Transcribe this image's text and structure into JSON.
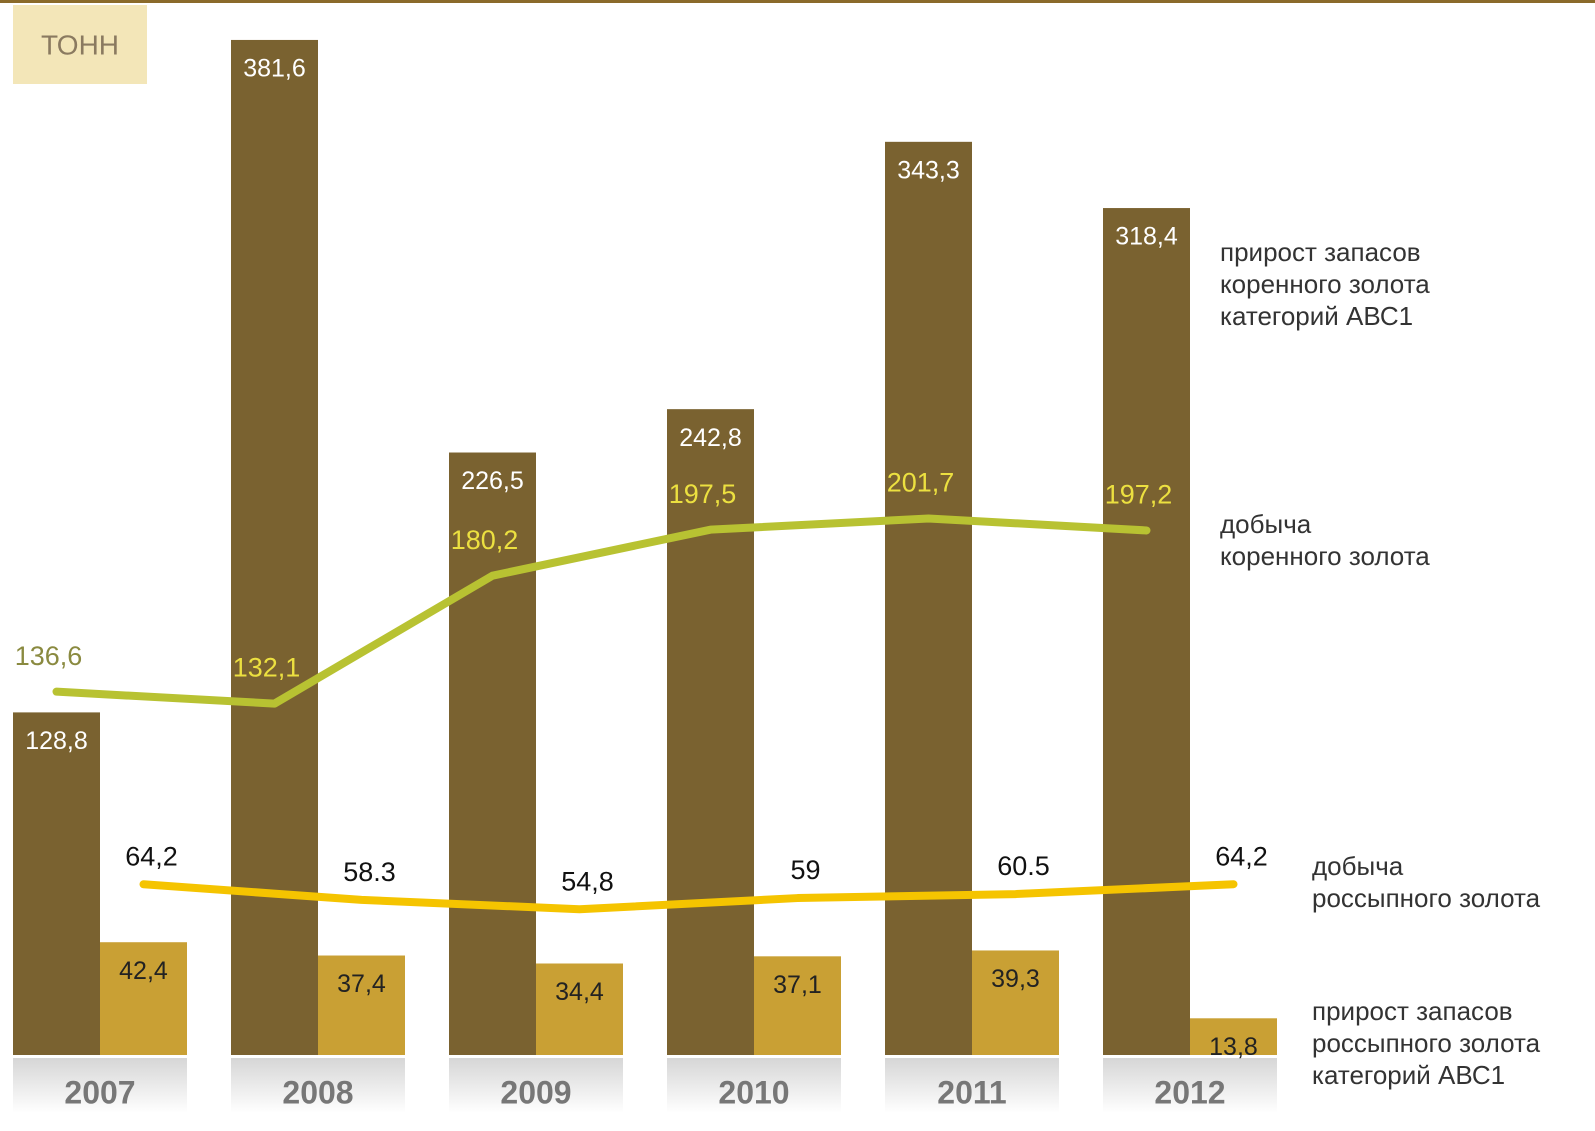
{
  "chart_data": {
    "type": "bar",
    "y_label": "ТОНН",
    "categories": [
      "2007",
      "2008",
      "2009",
      "2010",
      "2011",
      "2012"
    ],
    "series": [
      {
        "name": "прирост запасов\nкоренного золота\nкатегорий АВС1",
        "type": "bar",
        "color": "#7a6230",
        "values": [
          128.8,
          381.6,
          226.5,
          242.8,
          343.3,
          318.4
        ],
        "value_labels": [
          "128,8",
          "381,6",
          "226,5",
          "242,8",
          "343,3",
          "318,4"
        ]
      },
      {
        "name": "прирост запасов\nроссыпного золота\nкатегорий АВС1",
        "type": "bar",
        "color": "#c9a034",
        "values": [
          42.4,
          37.4,
          34.4,
          37.1,
          39.3,
          13.8
        ],
        "value_labels": [
          "42,4",
          "37,4",
          "34,4",
          "37,1",
          "39,3",
          "13,8"
        ]
      },
      {
        "name": "добыча\nкоренного золота",
        "type": "line",
        "color": "#b8c232",
        "values": [
          136.6,
          132.1,
          180.2,
          197.5,
          201.7,
          197.2
        ],
        "value_labels": [
          "136,6",
          "132,1",
          "180,2",
          "197,5",
          "201,7",
          "197,2"
        ]
      },
      {
        "name": "добыча\nроссыпного золота",
        "type": "line",
        "color": "#f5c400",
        "values": [
          64.2,
          58.3,
          54.8,
          59,
          60.5,
          64.2
        ],
        "value_labels": [
          "64,2",
          "58.3",
          "54,8",
          "59",
          "60.5",
          "64,2"
        ]
      }
    ]
  }
}
